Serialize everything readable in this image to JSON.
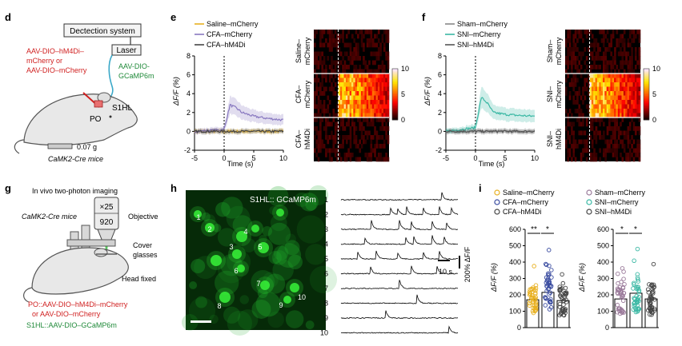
{
  "panels": {
    "d": {
      "letter": "d",
      "detection_system": "Dectection system",
      "laser": "Laser",
      "virus_red_1": "AAV-DIO–hM4Di–",
      "virus_red_2": "mCherry or",
      "virus_red_3": "AAV-DIO–mCherry",
      "virus_green_1": "AAV-DIO-",
      "virus_green_2": "GCaMP6m",
      "region_s1hl": "S1HL",
      "region_po": "PO",
      "weight": "0.07 g",
      "mouse_line": "CaMK2-Cre mice"
    },
    "e": {
      "letter": "e",
      "legend": [
        "Saline–mCherry",
        "CFA–mCherry",
        "CFA–hM4Di"
      ],
      "ylabel": "ΔF/F (%)",
      "xlabel": "Time (s)",
      "heatmap_rows": [
        [
          "Saline–",
          "mCherry"
        ],
        [
          "CFA–",
          "mCherry"
        ],
        [
          "CFA–",
          "hM4Di"
        ]
      ]
    },
    "f": {
      "letter": "f",
      "legend": [
        "Sham–mCherry",
        "SNI–mCherry",
        "SNI–hM4Di"
      ],
      "ylabel": "ΔF/F (%)",
      "xlabel": "Time (s)",
      "heatmap_rows": [
        [
          "Sham–",
          "mCherry"
        ],
        [
          "SNI–",
          "mCherry"
        ],
        [
          "SNI–",
          "hM4Di"
        ]
      ]
    },
    "g": {
      "letter": "g",
      "title": "In vivo two-photon imaging",
      "mouse_line": "CaMK2-Cre mice",
      "mag": "×25",
      "wavelength": "920",
      "objective": "Objective",
      "cover_1": "Cover",
      "cover_2": "glasses",
      "head_fixed": "Head fixed",
      "virus_1": "PO::AAV-DIO–hM4Di–mCherry",
      "virus_2": "or AAV-DIO–mCherry",
      "virus_3": "S1HL::AAV-DIO–GCaMP6m"
    },
    "h": {
      "letter": "h",
      "image_label": "S1HL:: GCaMP6m",
      "cell_labels": [
        "1",
        "2",
        "3",
        "4",
        "5",
        "6",
        "7",
        "8",
        "9",
        "10"
      ],
      "trace_labels": [
        "1",
        "2",
        "3",
        "4",
        "5",
        "6",
        "7",
        "8",
        "9",
        "10"
      ],
      "scale_time": "10 s",
      "scale_amp": "200% ΔF/F"
    },
    "i": {
      "letter": "i",
      "legend_left": [
        "Saline–mCherry",
        "CFA–mCherry",
        "CFA–hM4Di"
      ],
      "legend_right": [
        "Sham–mCherry",
        "SNI–mCherry",
        "SNI–hM4Di"
      ],
      "ylabel": "ΔF/F (%)",
      "sig_left": [
        "**",
        "*"
      ],
      "sig_right": [
        "*",
        "*"
      ]
    }
  },
  "chart_data": [
    {
      "type": "line",
      "panel": "e",
      "x": [
        -5,
        0,
        1,
        2,
        3,
        5,
        7,
        10
      ],
      "xlim": [
        -5,
        10
      ],
      "ylim": [
        -2,
        8
      ],
      "xticks": [
        -5,
        0,
        5,
        10
      ],
      "yticks": [
        -2,
        0,
        2,
        4,
        6,
        8
      ],
      "series": [
        {
          "name": "Saline–mCherry",
          "color": "#e8b020",
          "values": [
            0,
            0,
            0,
            0,
            0,
            0,
            0,
            0
          ]
        },
        {
          "name": "CFA–mCherry",
          "color": "#8878c0",
          "values": [
            0,
            0.2,
            2.8,
            2.5,
            2.0,
            1.6,
            1.4,
            1.2
          ]
        },
        {
          "name": "CFA–hM4Di",
          "color": "#444444",
          "values": [
            0,
            0,
            0,
            0,
            0,
            0,
            0,
            0
          ]
        }
      ]
    },
    {
      "type": "heatmap",
      "panel": "e",
      "colorbar_ticks": [
        0,
        5,
        10
      ],
      "clim": [
        0,
        10
      ]
    },
    {
      "type": "line",
      "panel": "f",
      "x": [
        -5,
        0,
        1,
        2,
        3,
        5,
        7,
        10
      ],
      "xlim": [
        -5,
        10
      ],
      "ylim": [
        -2,
        8
      ],
      "xticks": [
        -5,
        0,
        5,
        10
      ],
      "yticks": [
        -2,
        0,
        2,
        4,
        6,
        8
      ],
      "series": [
        {
          "name": "Sham–mCherry",
          "color": "#888888",
          "values": [
            0,
            0,
            0,
            0,
            0,
            0,
            0,
            0
          ]
        },
        {
          "name": "SNI–mCherry",
          "color": "#3ab8a4",
          "values": [
            0,
            0.4,
            3.6,
            3.0,
            2.0,
            1.8,
            1.7,
            1.6
          ]
        },
        {
          "name": "SNI–hM4Di",
          "color": "#555555",
          "values": [
            0,
            0,
            0,
            0,
            0,
            0,
            0,
            0
          ]
        }
      ]
    },
    {
      "type": "heatmap",
      "panel": "f",
      "colorbar_ticks": [
        0,
        5,
        10
      ],
      "clim": [
        0,
        10
      ]
    },
    {
      "type": "bar",
      "panel": "i-left",
      "categories": [
        "Saline–mCherry",
        "CFA–mCherry",
        "CFA–hM4Di"
      ],
      "values": [
        170,
        215,
        165
      ],
      "colors": [
        "#e8b020",
        "#3a4ca0",
        "#444444"
      ],
      "ylim": [
        0,
        600
      ],
      "yticks": [
        0,
        100,
        200,
        300,
        400,
        500,
        600
      ]
    },
    {
      "type": "bar",
      "panel": "i-right",
      "categories": [
        "Sham–mCherry",
        "SNI–mCherry",
        "SNI–hM4Di"
      ],
      "values": [
        175,
        210,
        175
      ],
      "colors": [
        "#9a7a9a",
        "#3ab8a4",
        "#444444"
      ],
      "ylim": [
        0,
        600
      ],
      "yticks": [
        0,
        100,
        200,
        300,
        400,
        500,
        600
      ]
    }
  ]
}
